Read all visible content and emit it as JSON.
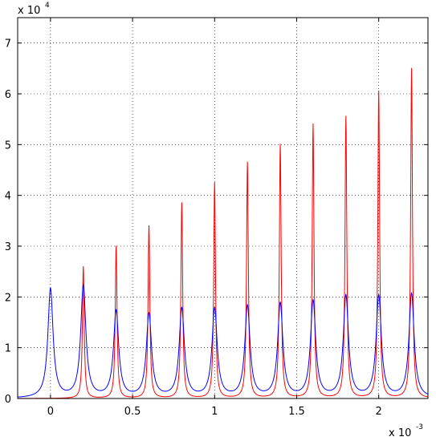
{
  "chart_data": {
    "type": "line",
    "title": "",
    "xlabel": "",
    "ylabel": "",
    "xlim": [
      -0.0002,
      0.0023
    ],
    "ylim": [
      0,
      75000
    ],
    "x_ticks": [
      0,
      0.0005,
      0.001,
      0.0015,
      0.002
    ],
    "x_tick_labels": [
      "0",
      "0.5",
      "1",
      "1.5",
      "2"
    ],
    "x_multiplier": {
      "base": "x 10",
      "exponent": "-3"
    },
    "y_ticks": [
      0,
      10000,
      20000,
      30000,
      40000,
      50000,
      60000,
      70000
    ],
    "y_tick_labels": [
      "0",
      "1",
      "2",
      "3",
      "4",
      "5",
      "6",
      "7"
    ],
    "y_multiplier": {
      "base": "x 10",
      "exponent": "4"
    },
    "grid": true,
    "series": [
      {
        "color": "#ff0000",
        "peaks": [
          {
            "x": 0.0002,
            "y": 26000
          },
          {
            "x": 0.0004,
            "y": 30000
          },
          {
            "x": 0.0006,
            "y": 34000
          },
          {
            "x": 0.0008,
            "y": 38500
          },
          {
            "x": 0.001,
            "y": 42500
          },
          {
            "x": 0.0012,
            "y": 46500
          },
          {
            "x": 0.0014,
            "y": 50000
          },
          {
            "x": 0.0016,
            "y": 54000
          },
          {
            "x": 0.0018,
            "y": 55500
          },
          {
            "x": 0.002,
            "y": 60500
          },
          {
            "x": 0.0022,
            "y": 65000
          }
        ]
      },
      {
        "color": "#0000ff",
        "peaks": [
          {
            "x": 0,
            "y": 21500
          },
          {
            "x": 0.0002,
            "y": 22000
          },
          {
            "x": 0.0004,
            "y": 17000
          },
          {
            "x": 0.0006,
            "y": 16500
          },
          {
            "x": 0.0008,
            "y": 17500
          },
          {
            "x": 0.001,
            "y": 17500
          },
          {
            "x": 0.0012,
            "y": 18000
          },
          {
            "x": 0.0014,
            "y": 18500
          },
          {
            "x": 0.0016,
            "y": 19000
          },
          {
            "x": 0.0018,
            "y": 20000
          },
          {
            "x": 0.002,
            "y": 20000
          },
          {
            "x": 0.0022,
            "y": 20500
          }
        ]
      }
    ]
  }
}
